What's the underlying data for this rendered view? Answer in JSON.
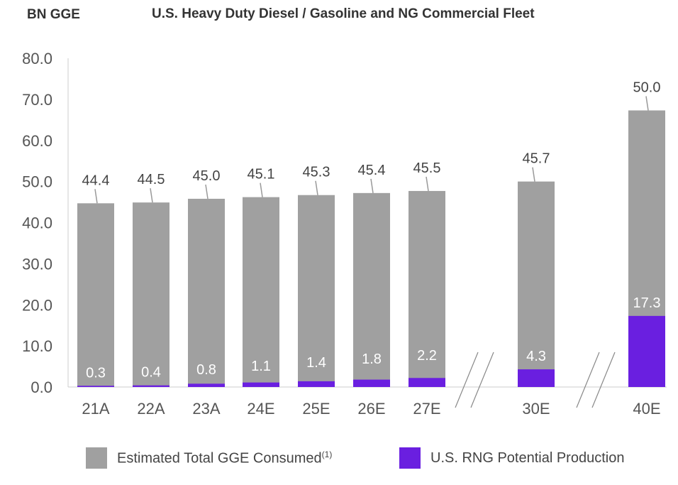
{
  "header": {
    "unit_label": "BN GGE",
    "title": "U.S. Heavy Duty Diesel / Gasoline and NG Commercial Fleet"
  },
  "legend": {
    "items": [
      {
        "label": "Estimated Total GGE Consumed",
        "superscript": "(1)",
        "color": "#a0a0a0"
      },
      {
        "label": "U.S. RNG Potential Production",
        "superscript": "",
        "color": "#6a1fe0"
      }
    ]
  },
  "colors": {
    "total": "#a0a0a0",
    "rng": "#6a1fe0",
    "axis": "#cccccc",
    "text": "#444444"
  },
  "chart_data": {
    "type": "bar",
    "title": "U.S. Heavy Duty Diesel / Gasoline and NG Commercial Fleet",
    "ylabel": "BN GGE",
    "xlabel": "",
    "ylim": [
      0,
      80
    ],
    "y_ticks": [
      "0.0",
      "10.0",
      "20.0",
      "30.0",
      "40.0",
      "50.0",
      "60.0",
      "70.0",
      "80.0"
    ],
    "grid": false,
    "legend_position": "bottom",
    "categories": [
      "21A",
      "22A",
      "23A",
      "24E",
      "25E",
      "26E",
      "27E",
      "30E",
      "40E"
    ],
    "axis_breaks": [
      "between 27E and 30E",
      "between 30E and 40E"
    ],
    "series": [
      {
        "name": "Estimated Total GGE Consumed",
        "bar_heights": [
          44.7,
          44.9,
          45.8,
          46.2,
          46.7,
          47.2,
          47.7,
          50.0,
          67.3
        ],
        "labels": [
          "44.4",
          "44.5",
          "45.0",
          "45.1",
          "45.3",
          "45.4",
          "45.5",
          "45.7",
          "50.0"
        ]
      },
      {
        "name": "U.S. RNG Potential Production",
        "values": [
          0.3,
          0.4,
          0.8,
          1.1,
          1.4,
          1.8,
          2.2,
          4.3,
          17.3
        ],
        "labels": [
          "0.3",
          "0.4",
          "0.8",
          "1.1",
          "1.4",
          "1.8",
          "2.2",
          "4.3",
          "17.3"
        ]
      }
    ]
  }
}
